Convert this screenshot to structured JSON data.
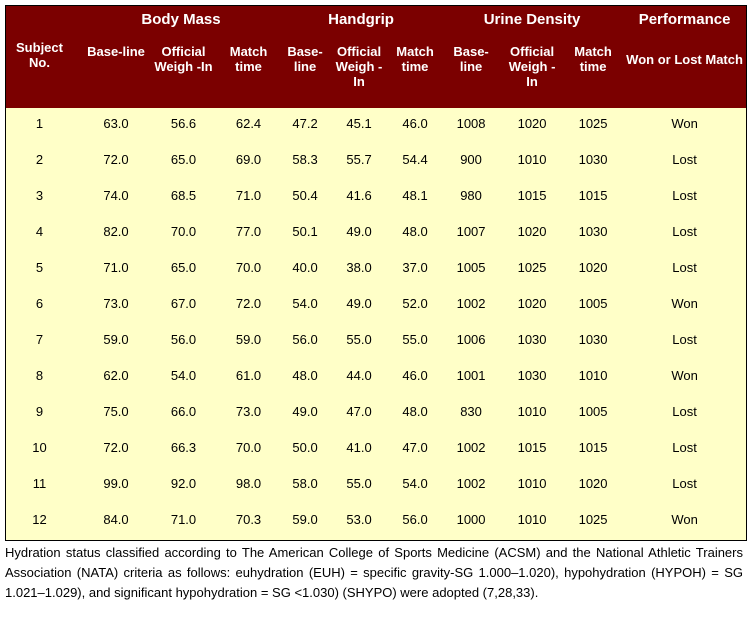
{
  "table": {
    "group_headers": [
      "Body Mass",
      "Handgrip",
      "Urine Density",
      "Performance"
    ],
    "subject_header": "Subject No.",
    "sub_headers": [
      "Base-line",
      "Official Weigh -In",
      "Match time",
      "Base-line",
      "Official Weigh -In",
      "Match time",
      "Base-line",
      "Official Weigh -In",
      "Match time",
      "Won or Lost Match"
    ],
    "rows": [
      [
        "1",
        "63.0",
        "56.6",
        "62.4",
        "47.2",
        "45.1",
        "46.0",
        "1008",
        "1020",
        "1025",
        "Won"
      ],
      [
        "2",
        "72.0",
        "65.0",
        "69.0",
        "58.3",
        "55.7",
        "54.4",
        "900",
        "1010",
        "1030",
        "Lost"
      ],
      [
        "3",
        "74.0",
        "68.5",
        "71.0",
        "50.4",
        "41.6",
        "48.1",
        "980",
        "1015",
        "1015",
        "Lost"
      ],
      [
        "4",
        "82.0",
        "70.0",
        "77.0",
        "50.1",
        "49.0",
        "48.0",
        "1007",
        "1020",
        "1030",
        "Lost"
      ],
      [
        "5",
        "71.0",
        "65.0",
        "70.0",
        "40.0",
        "38.0",
        "37.0",
        "1005",
        "1025",
        "1020",
        "Lost"
      ],
      [
        "6",
        "73.0",
        "67.0",
        "72.0",
        "54.0",
        "49.0",
        "52.0",
        "1002",
        "1020",
        "1005",
        "Won"
      ],
      [
        "7",
        "59.0",
        "56.0",
        "59.0",
        "56.0",
        "55.0",
        "55.0",
        "1006",
        "1030",
        "1030",
        "Lost"
      ],
      [
        "8",
        "62.0",
        "54.0",
        "61.0",
        "48.0",
        "44.0",
        "46.0",
        "1001",
        "1030",
        "1010",
        "Won"
      ],
      [
        "9",
        "75.0",
        "66.0",
        "73.0",
        "49.0",
        "47.0",
        "48.0",
        "830",
        "1010",
        "1005",
        "Lost"
      ],
      [
        "10",
        "72.0",
        "66.3",
        "70.0",
        "50.0",
        "41.0",
        "47.0",
        "1002",
        "1015",
        "1015",
        "Lost"
      ],
      [
        "11",
        "99.0",
        "92.0",
        "98.0",
        "58.0",
        "55.0",
        "54.0",
        "1002",
        "1010",
        "1020",
        "Lost"
      ],
      [
        "12",
        "84.0",
        "71.0",
        "70.3",
        "59.0",
        "53.0",
        "56.0",
        "1000",
        "1010",
        "1025",
        "Won"
      ]
    ]
  },
  "footnote": "Hydration status classified according to The American College of Sports Medicine (ACSM) and the National Athletic Trainers Association (NATA) criteria as follows: euhydration (EUH) = specific gravity-SG 1.000–1.020), hypohydration (HYPOH) = SG 1.021–1.029), and significant hypohydration = SG <1.030) (SHYPO) were adopted (7,28,33).",
  "colors": {
    "header_bg": "#7b0000",
    "body_bg": "#ffffc8"
  }
}
